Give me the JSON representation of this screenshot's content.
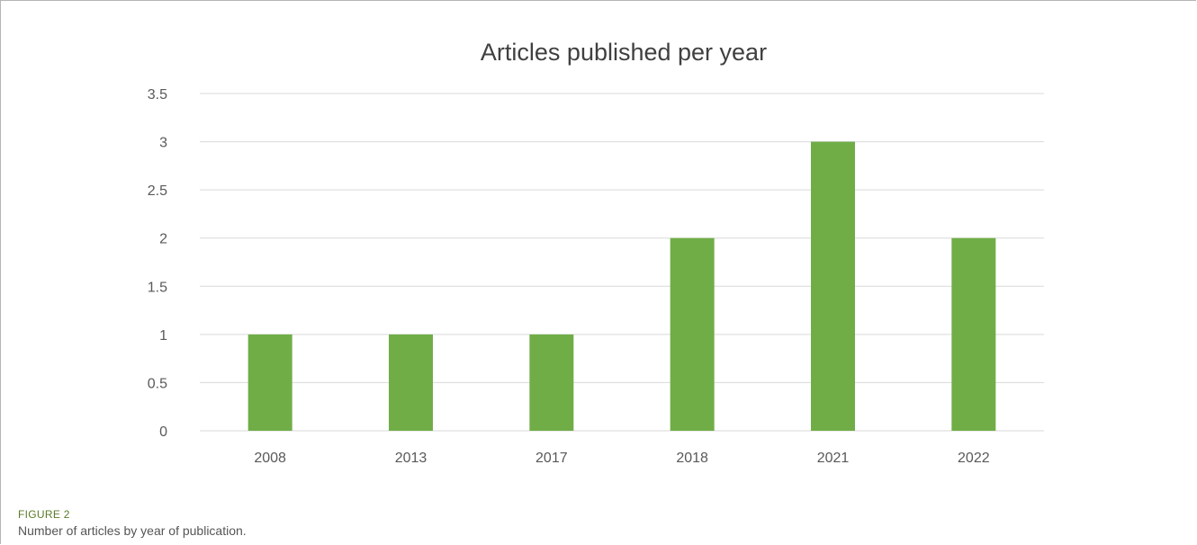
{
  "chart_data": {
    "type": "bar",
    "title": "Articles published per year",
    "categories": [
      "2008",
      "2013",
      "2017",
      "2018",
      "2021",
      "2022"
    ],
    "values": [
      1,
      1,
      1,
      2,
      3,
      2
    ],
    "ylim": [
      0,
      3.5
    ],
    "yticks": [
      "0",
      "0.5",
      "1",
      "1.5",
      "2",
      "2.5",
      "3",
      "3.5"
    ],
    "grid": true,
    "legend": "none",
    "colors": {
      "bar": "#70ad47",
      "grid": "#d9d9d9",
      "text": "#595959",
      "title": "#404040"
    }
  },
  "figure": {
    "label": "FIGURE 2",
    "caption": "Number of articles by year of publication."
  }
}
